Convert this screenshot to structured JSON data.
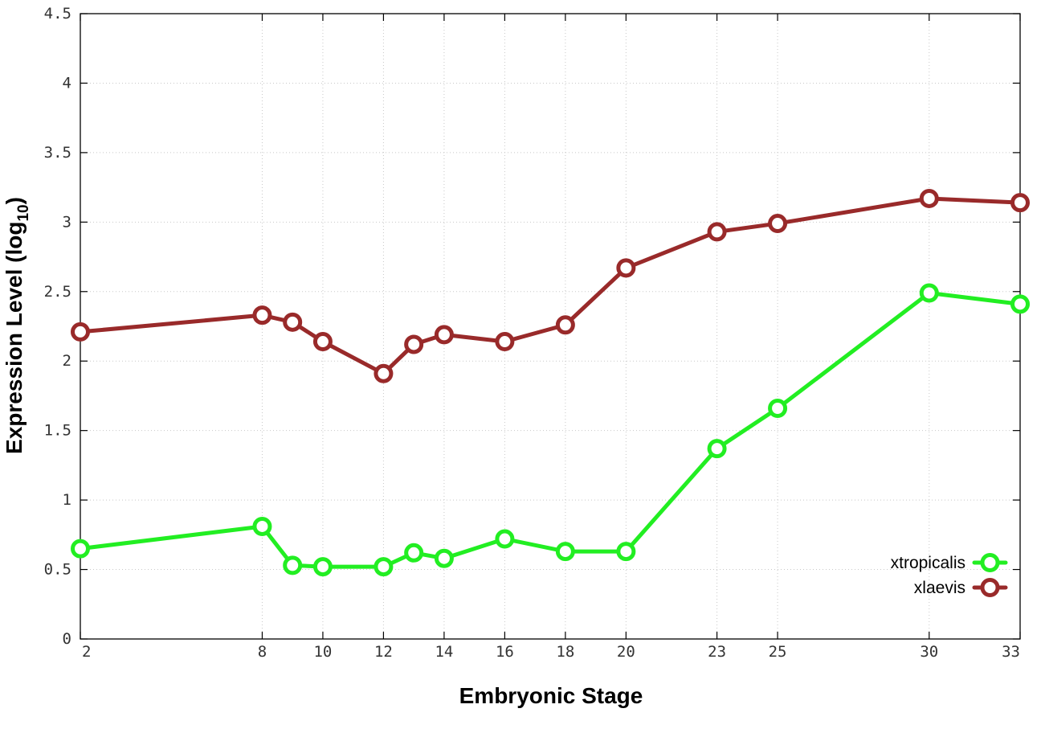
{
  "chart_data": {
    "type": "line",
    "xlabel": "Embryonic Stage",
    "ylabel": {
      "main": "Expression Level (log",
      "subscript": "10",
      "close": ")"
    },
    "x": [
      2,
      8,
      9,
      10,
      12,
      13,
      14,
      16,
      18,
      20,
      23,
      25,
      30,
      33
    ],
    "x_tick_labels": [
      "2",
      "8",
      "10",
      "12",
      "14",
      "16",
      "18",
      "20",
      "23",
      "25",
      "30",
      "33"
    ],
    "y_tick_labels": [
      "0",
      "0.5",
      "1",
      "1.5",
      "2",
      "2.5",
      "3",
      "3.5",
      "4",
      "4.5"
    ],
    "xlim": [
      2,
      33
    ],
    "ylim": [
      0,
      4.5
    ],
    "grid": true,
    "legend_position": "bottom-right",
    "series": [
      {
        "name": "xtropicalis",
        "color": "#22ee22",
        "values": [
          0.65,
          0.81,
          0.53,
          0.52,
          0.52,
          0.62,
          0.58,
          0.72,
          0.63,
          0.63,
          1.37,
          1.66,
          2.49,
          2.41
        ]
      },
      {
        "name": "xlaevis",
        "color": "#992a2a",
        "values": [
          2.21,
          2.33,
          2.28,
          2.14,
          1.91,
          2.12,
          2.19,
          2.14,
          2.26,
          2.67,
          2.93,
          2.99,
          3.17,
          3.14
        ]
      }
    ]
  }
}
